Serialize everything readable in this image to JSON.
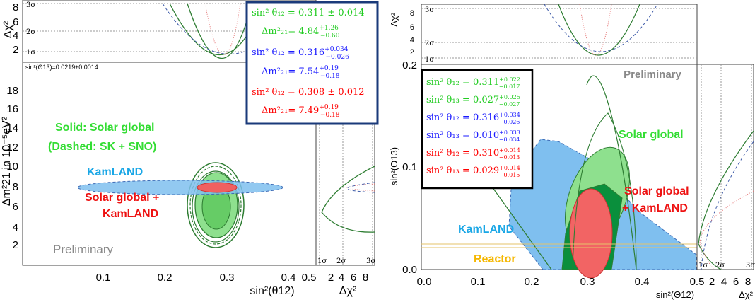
{
  "chart_data": [
    {
      "type": "contour",
      "panel": "left",
      "xlabel": "sin²(θ12)",
      "ylabel": "Δm²21 in 10⁻⁵eV²",
      "x_ticks": [
        "0.1",
        "0.2",
        "0.3",
        "0.4",
        "0.5"
      ],
      "y_ticks": [
        "2",
        "4",
        "6",
        "8",
        "10",
        "12",
        "14",
        "16",
        "18"
      ],
      "xlim": [
        0.02,
        0.52
      ],
      "ylim": [
        0.5,
        20
      ],
      "top_projection": {
        "ylabel": "Δχ²",
        "y_ticks": [
          "2",
          "4",
          "6",
          "8"
        ],
        "sigma_labels": [
          "1σ",
          "2σ",
          "3σ"
        ]
      },
      "right_projection": {
        "xlabel": "Δχ²",
        "x_ticks": [
          "2",
          "4",
          "6",
          "8"
        ],
        "sigma_labels": [
          "1σ",
          "2σ",
          "3σ"
        ]
      },
      "theta13_note": "sin²(Θ13)=0.0219±0.0014",
      "watermark": "Preliminary",
      "annotations": {
        "solar": "Solid: Solar global",
        "solar_dashed": "(Dashed: SK + SNO)",
        "kamland": "KamLAND",
        "combined_1": "Solar global +",
        "combined_2": "KamLAND"
      },
      "series": [
        {
          "name": "Solar global",
          "color": "#2e7d32",
          "best_fit": {
            "x": 0.311,
            "y": 4.84
          },
          "sin2_theta12": "0.311 ± 0.014",
          "dm21": "4.84",
          "dm21_up": "+1.26",
          "dm21_down": "−0.60"
        },
        {
          "name": "KamLAND",
          "color": "#5aa9e6",
          "best_fit": {
            "x": 0.316,
            "y": 7.54
          },
          "sin2_theta12": "0.316",
          "s12_up": "+0.034",
          "s12_down": "−0.026",
          "dm21": "7.54",
          "dm21_up": "+0.19",
          "dm21_down": "−0.18"
        },
        {
          "name": "Solar global + KamLAND",
          "color": "#f44336",
          "best_fit": {
            "x": 0.308,
            "y": 7.49
          },
          "sin2_theta12": "0.308 ± 0.012",
          "dm21": "7.49",
          "dm21_up": "+0.19",
          "dm21_down": "−0.18"
        }
      ],
      "legend_colors": {
        "solar": "#22cc22",
        "kamland": "#1a1aff",
        "combined": "#ff0000"
      }
    },
    {
      "type": "contour",
      "panel": "right",
      "xlabel": "sin²(Θ12)",
      "ylabel": "sin²(Θ13)",
      "x_ticks": [
        "0.0",
        "0.1",
        "0.2",
        "0.3",
        "0.4",
        "0.5"
      ],
      "y_ticks": [
        "0.0",
        "0.1",
        "0.2"
      ],
      "xlim": [
        0.0,
        0.5
      ],
      "ylim": [
        0.0,
        0.2
      ],
      "top_projection": {
        "ylabel": "Δχ²",
        "y_ticks": [
          "2",
          "4",
          "6",
          "8"
        ],
        "sigma_labels": [
          "1σ",
          "2σ",
          "3σ"
        ]
      },
      "right_projection": {
        "xlabel": "Δχ²",
        "x_ticks": [
          "2",
          "4",
          "6",
          "8"
        ],
        "sigma_labels": [
          "1σ",
          "2σ",
          "3σ"
        ]
      },
      "watermark": "Preliminary",
      "annotations": {
        "solar": "Solar global",
        "combined_1": "Solar global",
        "combined_2": "+ KamLAND",
        "kamland": "KamLAND",
        "reactor": "Reactor"
      },
      "series": [
        {
          "name": "Solar global",
          "best_fit": {
            "x": 0.311,
            "y": 0.027
          },
          "s12": "0.311",
          "s12_up": "+0.022",
          "s12_down": "−0.017",
          "s13": "0.027",
          "s13_up": "+0.025",
          "s13_down": "−0.027"
        },
        {
          "name": "KamLAND",
          "best_fit": {
            "x": 0.316,
            "y": 0.01
          },
          "s12": "0.316",
          "s12_up": "+0.034",
          "s12_down": "−0.026",
          "s13": "0.010",
          "s13_up": "+0.033",
          "s13_down": "−0.034"
        },
        {
          "name": "Solar global + KamLAND",
          "best_fit": {
            "x": 0.31,
            "y": 0.029
          },
          "s12": "0.310",
          "s12_up": "+0.014",
          "s12_down": "−0.013",
          "s13": "0.029",
          "s13_up": "+0.014",
          "s13_down": "−0.015"
        }
      ]
    }
  ]
}
